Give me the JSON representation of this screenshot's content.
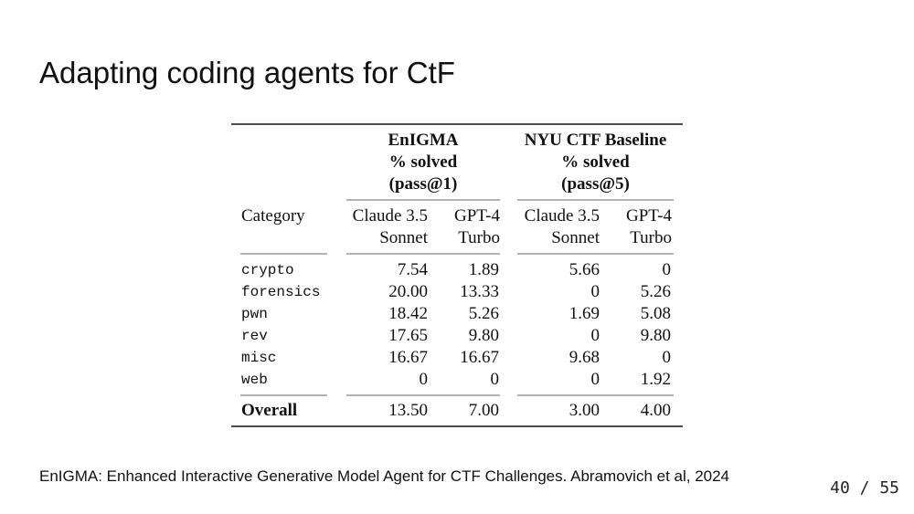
{
  "slide": {
    "title": "Adapting coding agents for CtF",
    "citation": "EnIGMA: Enhanced Interactive Generative Model Agent for CTF Challenges. Abramovich et al, 2024",
    "page_number": "40 / 55"
  },
  "table": {
    "group_headers": [
      {
        "line1": "EnIGMA",
        "line2": "% solved",
        "line3": "(pass@1)"
      },
      {
        "line1": "NYU CTF Baseline",
        "line2": "% solved",
        "line3": "(pass@5)"
      }
    ],
    "category_header": "Category",
    "model_headers": [
      {
        "line1": "Claude 3.5",
        "line2": "Sonnet"
      },
      {
        "line1": "GPT-4",
        "line2": "Turbo"
      },
      {
        "line1": "Claude 3.5",
        "line2": "Sonnet"
      },
      {
        "line1": "GPT-4",
        "line2": "Turbo"
      }
    ],
    "rows": [
      {
        "category": "crypto",
        "values": [
          "7.54",
          "1.89",
          "5.66",
          "0"
        ]
      },
      {
        "category": "forensics",
        "values": [
          "20.00",
          "13.33",
          "0",
          "5.26"
        ]
      },
      {
        "category": "pwn",
        "values": [
          "18.42",
          "5.26",
          "1.69",
          "5.08"
        ]
      },
      {
        "category": "rev",
        "values": [
          "17.65",
          "9.80",
          "0",
          "9.80"
        ]
      },
      {
        "category": "misc",
        "values": [
          "16.67",
          "16.67",
          "9.68",
          "0"
        ]
      },
      {
        "category": "web",
        "values": [
          "0",
          "0",
          "0",
          "1.92"
        ]
      }
    ],
    "overall": {
      "label": "Overall",
      "values": [
        "13.50",
        "7.00",
        "3.00",
        "4.00"
      ]
    }
  }
}
